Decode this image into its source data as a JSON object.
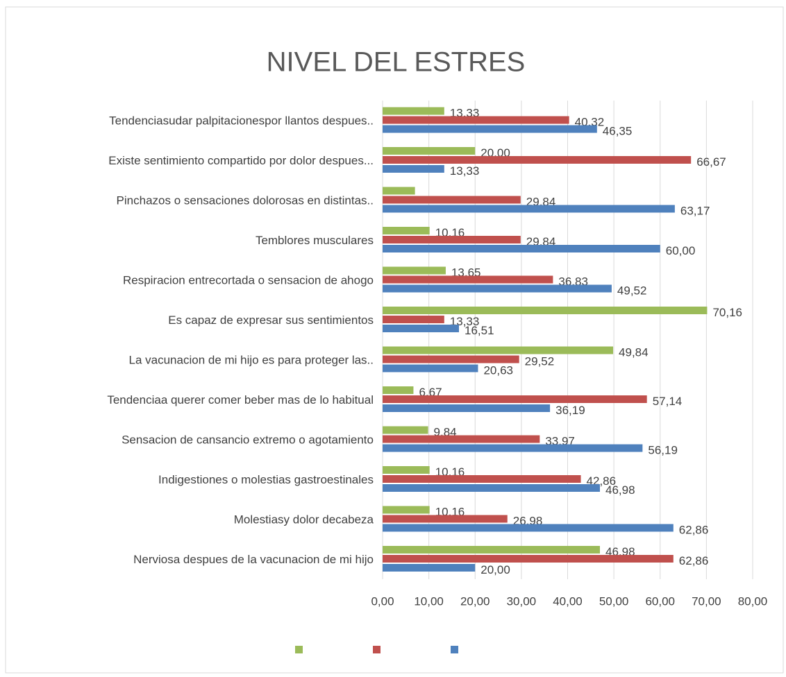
{
  "chart_data": {
    "type": "bar",
    "orientation": "horizontal",
    "title": "NIVEL DEL ESTRES",
    "categories": [
      "Tendenciasudar palpitacionespor llantos despues..",
      "Existe sentimiento compartido por dolor despues...",
      "Pinchazos o sensaciones dolorosas en distintas..",
      "Temblores musculares",
      "Respiracion entrecortada o sensacion de ahogo",
      "Es capaz de expresar sus sentimientos",
      "La vacunacion de mi hijo es para proteger las..",
      "Tendenciaa querer comer beber mas de lo habitual",
      "Sensacion de cansancio extremo o agotamiento",
      "Indigestiones o molestias gastroestinales",
      "Molestiasy dolor decabeza",
      "Nerviosa despues de la vacunacion de mi hijo"
    ],
    "series": [
      {
        "color": "#9bbb59",
        "values": [
          13.33,
          20.0,
          7.0,
          10.16,
          13.65,
          70.16,
          49.84,
          6.67,
          9.84,
          10.16,
          10.16,
          46.98
        ],
        "value_labels": [
          "13,33",
          "20,00",
          null,
          "10,16",
          "13,65",
          "70,16",
          "49,84",
          "6,67",
          "9,84",
          "10,16",
          "10,16",
          "46,98"
        ]
      },
      {
        "color": "#c0504d",
        "values": [
          40.32,
          66.67,
          29.84,
          29.84,
          36.83,
          13.33,
          29.52,
          57.14,
          33.97,
          42.86,
          26.98,
          62.86
        ],
        "value_labels": [
          "40,32",
          "66,67",
          "29,84",
          "29,84",
          "36,83",
          "13,33",
          "29,52",
          "57,14",
          "33,97",
          "42,86",
          "26,98",
          "62,86"
        ]
      },
      {
        "color": "#4f81bd",
        "values": [
          46.35,
          13.33,
          63.17,
          60.0,
          49.52,
          16.51,
          20.63,
          36.19,
          56.19,
          46.98,
          62.86,
          20.0
        ],
        "value_labels": [
          "46,35",
          "13,33",
          "63,17",
          "60,00",
          "49,52",
          "16,51",
          "20,63",
          "36,19",
          "56,19",
          "46,98",
          "62,86",
          "20,00"
        ]
      }
    ],
    "xlim": [
      0,
      80
    ],
    "xticks": [
      {
        "value": 0,
        "label": "0,00"
      },
      {
        "value": 10,
        "label": "10,00"
      },
      {
        "value": 20,
        "label": "20,00"
      },
      {
        "value": 30,
        "label": "30,00"
      },
      {
        "value": 40,
        "label": "40,00"
      },
      {
        "value": 50,
        "label": "50,00"
      },
      {
        "value": 60,
        "label": "60,00"
      },
      {
        "value": 70,
        "label": "70,00"
      },
      {
        "value": 80,
        "label": "80,00"
      }
    ],
    "grid": true
  }
}
